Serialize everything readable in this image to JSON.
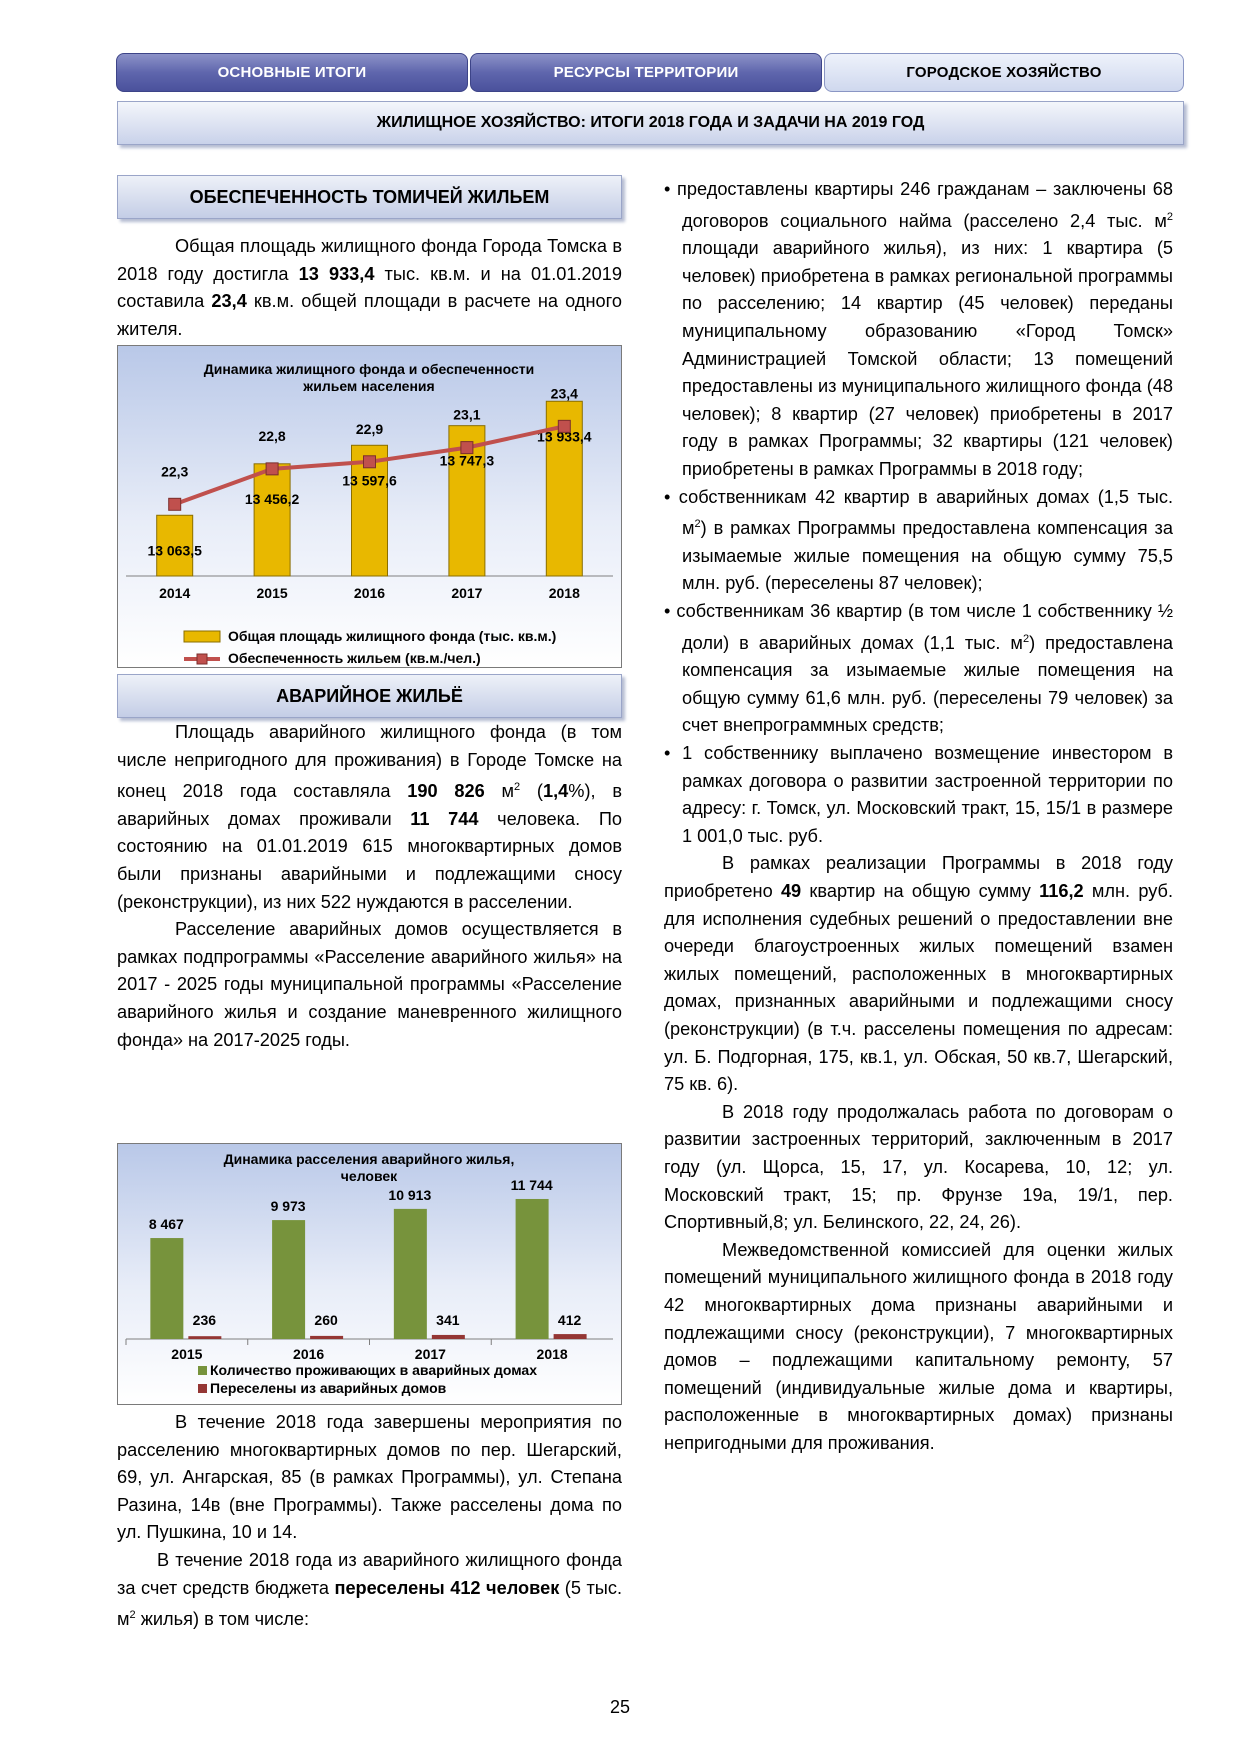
{
  "tabs": [
    {
      "label": "ОСНОВНЫЕ ИТОГИ"
    },
    {
      "label": "РЕСУРСЫ ТЕРРИТОРИИ"
    },
    {
      "label": "ГОРОДСКОЕ ХОЗЯЙСТВО"
    }
  ],
  "banner": "ЖИЛИЩНОЕ ХОЗЯЙСТВО: ИТОГИ 2018 ГОДА И ЗАДАЧИ НА 2019 ГОД",
  "left": {
    "section1_title": "ОБЕСПЕЧЕННОСТЬ ТОМИЧЕЙ ЖИЛЬЕМ",
    "p1": {
      "a": "Общая площадь жилищного фонда Города Томска в 2018 году достигла ",
      "b": "13 933,4",
      "c": " тыс. кв.м. и на 01.01.2019 составила ",
      "d": "23,4",
      "e": " кв.м. общей площади в расчете на одного жителя."
    },
    "section2_title": "АВАРИЙНОЕ ЖИЛЬЁ",
    "p2": {
      "a": "Площадь аварийного жилищного фонда (в том числе непригодного для проживания) в Городе Томске на конец 2018 года составляла ",
      "b": "190 826",
      "c": " м",
      "sup": "2",
      "d": " (",
      "e": "1,4",
      "f": "%), в аварийных домах проживали ",
      "g": "11 744",
      "h": " человека. По состоянию на 01.01.2019 615 многоквартирных домов были признаны аварийными и подлежащими сносу (реконструкции), из них 522 нуждаются в расселении."
    },
    "p3": "Расселение аварийных домов осуществляется в рамках подпрограммы «Расселение аварийного жилья» на 2017 - 2025 годы муниципальной программы «Расселение аварийного жилья и создание маневренного жилищного фонда» на 2017-2025 годы.",
    "p4": "В течение 2018 года завершены мероприятия по расселению многоквартирных домов по пер. Шегарский, 69, ул. Ангарская, 85 (в рамках Программы), ул. Степана Разина, 14в (вне Программы). Также расселены дома по ул. Пушкина, 10 и 14.",
    "p5": {
      "a": "В течение 2018 года из аварийного жилищного фонда за счет средств бюджета ",
      "b": "переселены 412 человек",
      "c": " (5 тыс. м",
      "sup": "2",
      "d": " жилья) в том числе:"
    }
  },
  "right": {
    "b1": {
      "a": "предоставлены квартиры 246 гражданам – заключены 68 договоров социального найма (расселено 2,4 тыс. м",
      "sup": "2",
      "b": " площади аварийного жилья), из них: 1 квартира (5 человек) приобретена в рамках региональной программы по расселению; 14 квартир (45 человек) переданы муниципальному образованию «Город Томск» Администрацией Томской области; 13 помещений предоставлены из муниципального жилищного фонда (48 человек); 8 квартир (27 человек) приобретены в 2017 году в рамках Программы; 32 квартиры (121 человек) приобретены в рамках Программы в 2018 году;"
    },
    "b2": {
      "a": "собственникам 42 квартир в аварийных домах (1,5 тыс. м",
      "sup": "2",
      "b": ") в рамках Программы предоставлена компенсация за изымаемые жилые помещения на общую сумму 75,5 млн. руб. (переселены 87 человек);"
    },
    "b3": {
      "a": "собственникам 36 квартир (в том числе 1 собственнику ½ доли) в аварийных домах (1,1 тыс. м",
      "sup": "2",
      "b": ") предоставлена компенсация за изымаемые жилые помещения на общую сумму 61,6 млн. руб. (переселены 79 человек) за счет внепрограммных средств;"
    },
    "b4": "1 собственнику выплачено возмещение инвестором в рамках договора о развитии застроенной территории по адресу: г. Томск, ул. Московский тракт, 15, 15/1 в размере 1 001,0 тыс. руб.",
    "p6": {
      "a": "В рамках реализации Программы в 2018 году приобретено ",
      "b": "49",
      "c": " квартир на общую сумму ",
      "d": "116,2",
      "e": " млн. руб. для исполнения судебных решений о предоставлении вне очереди благоустроенных жилых помещений взамен жилых помещений, расположенных в многоквартирных домах, признанных аварийными и подлежащими сносу (реконструкции) (в т.ч. расселены помещения по адресам: ул. Б. Подгорная, 175, кв.1, ул. Обская, 50 кв.7, Шегарский, 75 кв. 6)."
    },
    "p7": "В 2018 году продолжалась работа по договорам о развитии застроенных территорий, заключенным в 2017 году (ул. Щорса, 15, 17, ул. Косарева, 10, 12; ул. Московский тракт, 15; пр. Фрунзе 19а, 19/1, пер. Спортивный,8; ул. Белинского, 22, 24, 26).",
    "p8": "Межведомственной комиссией для оценки жилых помещений муниципального жилищного фонда в 2018 году 42 многоквартирных дома признаны аварийными и подлежащими сносу (реконструкции), 7 многоквартирных домов – подлежащими капитальному ремонту, 57 помещений (индивидуальные жилые дома и квартиры, расположенные в многоквартирных домах) признаны непригодными для проживания."
  },
  "page_number": "25",
  "colors": {
    "bar_gold": "#e8b800",
    "line_red": "#c0504d",
    "bar_green": "#77933c",
    "bar_dark_red": "#943634"
  },
  "chart_data": [
    {
      "type": "bar",
      "title": "Динамика жилищного фонда и обеспеченности жильем населения",
      "categories": [
        "2014",
        "2015",
        "2016",
        "2017",
        "2018"
      ],
      "series": [
        {
          "name": "Общая площадь жилищного фонда (тыс. кв.м.)",
          "type": "bar",
          "values": [
            13063.5,
            13456.2,
            13597.6,
            13747.3,
            13933.4
          ],
          "labels": [
            "13 063,5",
            "13 456,2",
            "13 597,6",
            "13 747,3",
            "13 933,4"
          ]
        },
        {
          "name": "Обеспеченность жильем (кв.м./чел.)",
          "type": "line",
          "values": [
            22.3,
            22.8,
            22.9,
            23.1,
            23.4
          ],
          "labels": [
            "22,3",
            "22,8",
            "22,9",
            "23,1",
            "23,4"
          ]
        }
      ],
      "legend": "bottom"
    },
    {
      "type": "bar",
      "title": "Динамика расселения аварийного жилья, человек",
      "categories": [
        "2015",
        "2016",
        "2017",
        "2018"
      ],
      "series": [
        {
          "name": "Количество проживающих в аварийных домах",
          "values": [
            8467,
            9973,
            10913,
            11744
          ],
          "labels": [
            "8 467",
            "9 973",
            "10 913",
            "11 744"
          ]
        },
        {
          "name": "Переселены из аварийных домов",
          "values": [
            236,
            260,
            341,
            412
          ],
          "labels": [
            "236",
            "260",
            "341",
            "412"
          ]
        }
      ],
      "legend": "bottom"
    }
  ]
}
